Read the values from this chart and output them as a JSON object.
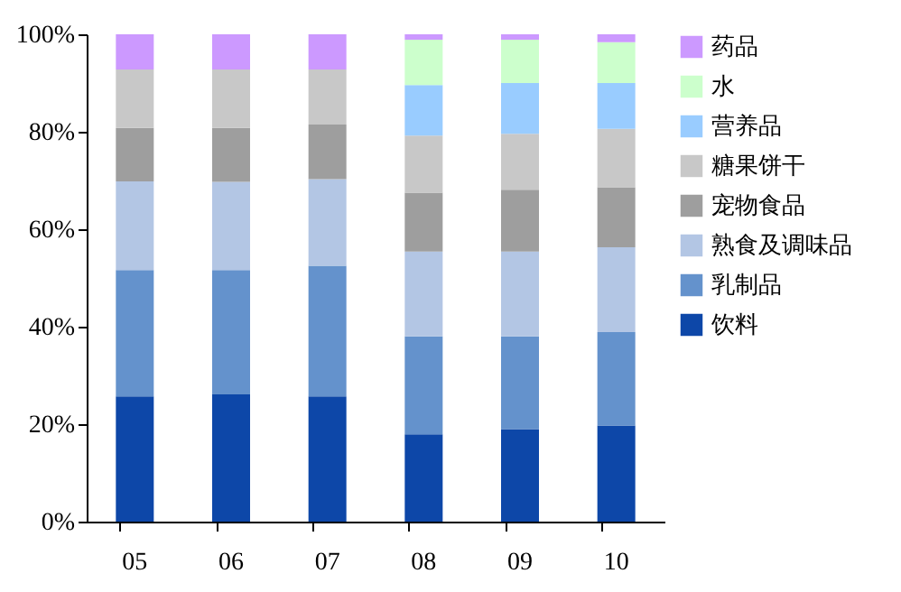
{
  "chart_data": {
    "type": "bar",
    "stacked": true,
    "categories": [
      "05",
      "06",
      "07",
      "08",
      "09",
      "10"
    ],
    "series": [
      {
        "name": "饮料",
        "color": "#0d47a8",
        "values": [
          25.7,
          26.1,
          25.7,
          17.9,
          19.0,
          19.7
        ]
      },
      {
        "name": "乳制品",
        "color": "#6492cc",
        "values": [
          25.9,
          25.5,
          26.8,
          20.1,
          19.0,
          19.2
        ]
      },
      {
        "name": "熟食及调味品",
        "color": "#b3c6e4",
        "values": [
          18.2,
          18.1,
          17.8,
          17.4,
          17.4,
          17.4
        ]
      },
      {
        "name": "宠物食品",
        "color": "#9e9e9e",
        "values": [
          11.0,
          11.1,
          11.2,
          12.1,
          12.7,
          12.3
        ]
      },
      {
        "name": "糖果饼干",
        "color": "#c8c8c8",
        "values": [
          12.0,
          12.0,
          11.3,
          11.7,
          11.5,
          12.0
        ]
      },
      {
        "name": "营养品",
        "color": "#99ccff",
        "values": [
          0,
          0,
          0,
          10.4,
          10.4,
          9.4
        ]
      },
      {
        "name": "水",
        "color": "#ccffcc",
        "values": [
          0,
          0,
          0,
          9.3,
          8.9,
          8.4
        ]
      },
      {
        "name": "药品",
        "color": "#cc99ff",
        "values": [
          7.2,
          7.2,
          7.2,
          1.1,
          1.1,
          1.6
        ]
      }
    ],
    "ylim": [
      0,
      100
    ],
    "yticks": [
      {
        "value": 0,
        "label": "0%"
      },
      {
        "value": 20,
        "label": "20%"
      },
      {
        "value": 40,
        "label": "40%"
      },
      {
        "value": 60,
        "label": "60%"
      },
      {
        "value": 80,
        "label": "80%"
      },
      {
        "value": 100,
        "label": "100%"
      }
    ],
    "grid": false,
    "legend": "right"
  }
}
